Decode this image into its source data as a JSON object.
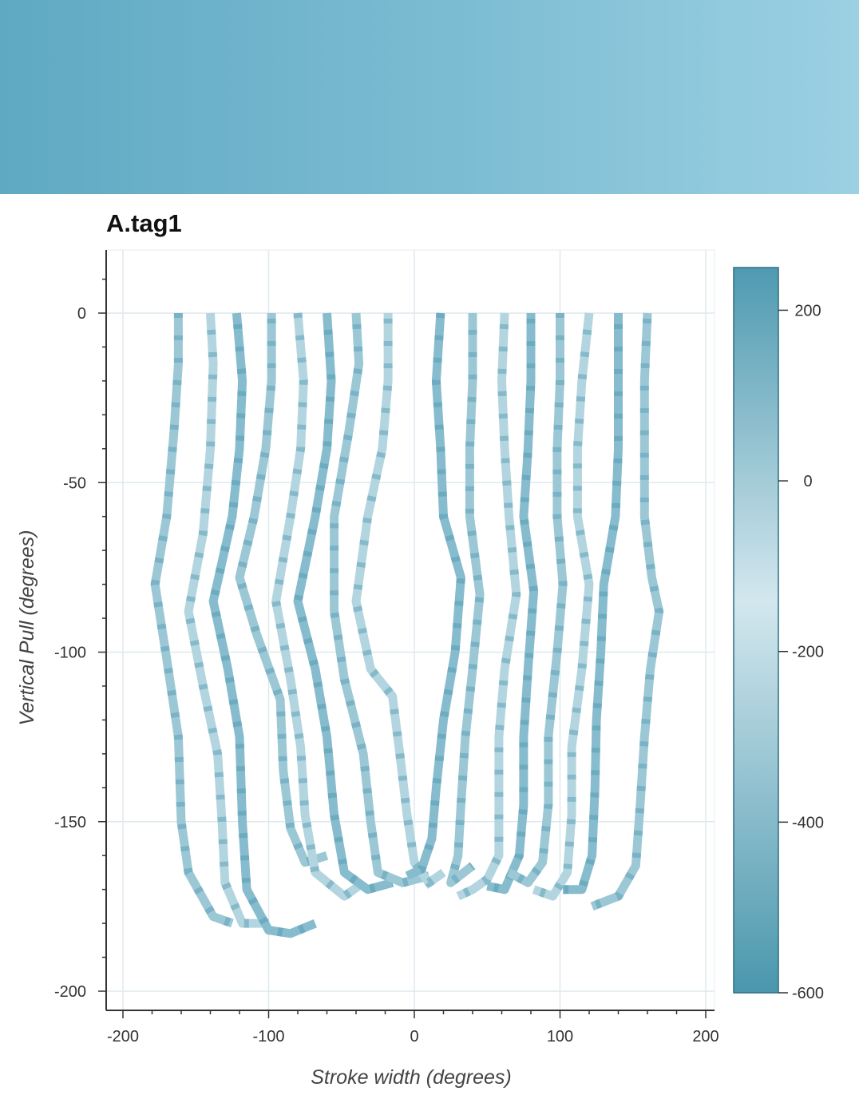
{
  "header": {
    "color_start": "#5fa9c2",
    "color_end": "#9cd0e3"
  },
  "chart_data": {
    "type": "line",
    "title": "A.tag1",
    "xlabel": "Stroke width (degrees)",
    "ylabel": "Vertical Pull (degrees)",
    "xlim": [
      -200,
      200
    ],
    "ylim": [
      -200,
      0
    ],
    "x_ticks": [
      -200,
      -100,
      0,
      100,
      200
    ],
    "y_ticks": [
      0,
      -50,
      -100,
      -150,
      -200
    ],
    "grid": true,
    "colorbar": {
      "ticks": [
        200,
        0,
        -200,
        -400,
        -600
      ],
      "range": [
        -600,
        250
      ],
      "colors": [
        "#4f9ab1",
        "#d3e7ee",
        "#4a97ad"
      ]
    },
    "series": [
      {
        "points": [
          [
            -162,
            0
          ],
          [
            -162,
            -15
          ],
          [
            -165,
            -35
          ],
          [
            -170,
            -60
          ],
          [
            -178,
            -80
          ],
          [
            -170,
            -102
          ],
          [
            -162,
            -125
          ],
          [
            -160,
            -150
          ],
          [
            -155,
            -165
          ],
          [
            -138,
            -178
          ],
          [
            -125,
            -180
          ]
        ]
      },
      {
        "points": [
          [
            -140,
            0
          ],
          [
            -138,
            -15
          ],
          [
            -140,
            -40
          ],
          [
            -145,
            -65
          ],
          [
            -155,
            -88
          ],
          [
            -145,
            -110
          ],
          [
            -135,
            -130
          ],
          [
            -132,
            -150
          ],
          [
            -130,
            -168
          ],
          [
            -118,
            -180
          ],
          [
            -100,
            -180
          ]
        ]
      },
      {
        "points": [
          [
            -122,
            0
          ],
          [
            -118,
            -20
          ],
          [
            -120,
            -40
          ],
          [
            -125,
            -60
          ],
          [
            -138,
            -85
          ],
          [
            -128,
            -105
          ],
          [
            -120,
            -125
          ],
          [
            -118,
            -150
          ],
          [
            -115,
            -170
          ],
          [
            -100,
            -182
          ],
          [
            -85,
            -183
          ],
          [
            -68,
            -180
          ]
        ]
      },
      {
        "points": [
          [
            -98,
            0
          ],
          [
            -98,
            -20
          ],
          [
            -102,
            -40
          ],
          [
            -110,
            -60
          ],
          [
            -120,
            -78
          ],
          [
            -108,
            -95
          ],
          [
            -92,
            -114
          ],
          [
            -90,
            -135
          ],
          [
            -85,
            -152
          ],
          [
            -75,
            -162
          ],
          [
            -60,
            -160
          ]
        ]
      },
      {
        "points": [
          [
            -80,
            0
          ],
          [
            -76,
            -20
          ],
          [
            -78,
            -40
          ],
          [
            -85,
            -60
          ],
          [
            -95,
            -85
          ],
          [
            -85,
            -108
          ],
          [
            -78,
            -128
          ],
          [
            -75,
            -148
          ],
          [
            -68,
            -165
          ],
          [
            -48,
            -172
          ],
          [
            -35,
            -168
          ]
        ]
      },
      {
        "points": [
          [
            -60,
            0
          ],
          [
            -57,
            -20
          ],
          [
            -60,
            -40
          ],
          [
            -68,
            -60
          ],
          [
            -80,
            -85
          ],
          [
            -68,
            -105
          ],
          [
            -60,
            -125
          ],
          [
            -55,
            -148
          ],
          [
            -48,
            -165
          ],
          [
            -32,
            -170
          ],
          [
            -15,
            -168
          ]
        ]
      },
      {
        "points": [
          [
            -40,
            0
          ],
          [
            -38,
            -15
          ],
          [
            -45,
            -35
          ],
          [
            -55,
            -60
          ],
          [
            -55,
            -88
          ],
          [
            -48,
            -108
          ],
          [
            -35,
            -130
          ],
          [
            -30,
            -150
          ],
          [
            -25,
            -165
          ],
          [
            -8,
            -168
          ],
          [
            10,
            -166
          ]
        ]
      },
      {
        "points": [
          [
            -18,
            0
          ],
          [
            -18,
            -20
          ],
          [
            -22,
            -40
          ],
          [
            -32,
            -60
          ],
          [
            -40,
            -85
          ],
          [
            -30,
            -105
          ],
          [
            -15,
            -113
          ],
          [
            -10,
            -130
          ],
          [
            -5,
            -148
          ],
          [
            0,
            -162
          ],
          [
            10,
            -168
          ],
          [
            20,
            -165
          ]
        ]
      },
      {
        "points": [
          [
            18,
            0
          ],
          [
            15,
            -20
          ],
          [
            18,
            -40
          ],
          [
            20,
            -60
          ],
          [
            32,
            -78
          ],
          [
            28,
            -100
          ],
          [
            20,
            -120
          ],
          [
            15,
            -140
          ],
          [
            12,
            -155
          ],
          [
            5,
            -164
          ],
          [
            -5,
            -166
          ]
        ]
      },
      {
        "points": [
          [
            40,
            0
          ],
          [
            40,
            -20
          ],
          [
            38,
            -40
          ],
          [
            38,
            -60
          ],
          [
            45,
            -83
          ],
          [
            40,
            -105
          ],
          [
            35,
            -125
          ],
          [
            32,
            -145
          ],
          [
            30,
            -160
          ],
          [
            25,
            -168
          ],
          [
            40,
            -163
          ]
        ]
      },
      {
        "points": [
          [
            62,
            0
          ],
          [
            60,
            -20
          ],
          [
            62,
            -40
          ],
          [
            65,
            -60
          ],
          [
            70,
            -83
          ],
          [
            62,
            -105
          ],
          [
            58,
            -125
          ],
          [
            58,
            -145
          ],
          [
            58,
            -160
          ],
          [
            50,
            -167
          ],
          [
            40,
            -170
          ],
          [
            30,
            -172
          ]
        ]
      },
      {
        "points": [
          [
            80,
            0
          ],
          [
            80,
            -20
          ],
          [
            78,
            -40
          ],
          [
            75,
            -60
          ],
          [
            82,
            -82
          ],
          [
            78,
            -105
          ],
          [
            75,
            -125
          ],
          [
            75,
            -145
          ],
          [
            72,
            -160
          ],
          [
            62,
            -170
          ],
          [
            50,
            -169
          ]
        ]
      },
      {
        "points": [
          [
            100,
            0
          ],
          [
            100,
            -20
          ],
          [
            98,
            -40
          ],
          [
            98,
            -60
          ],
          [
            102,
            -80
          ],
          [
            98,
            -100
          ],
          [
            92,
            -125
          ],
          [
            92,
            -145
          ],
          [
            88,
            -162
          ],
          [
            78,
            -168
          ],
          [
            65,
            -165
          ]
        ]
      },
      {
        "points": [
          [
            120,
            0
          ],
          [
            115,
            -20
          ],
          [
            112,
            -40
          ],
          [
            112,
            -60
          ],
          [
            120,
            -80
          ],
          [
            115,
            -105
          ],
          [
            108,
            -128
          ],
          [
            108,
            -148
          ],
          [
            105,
            -165
          ],
          [
            95,
            -172
          ],
          [
            82,
            -170
          ]
        ]
      },
      {
        "points": [
          [
            140,
            0
          ],
          [
            140,
            -20
          ],
          [
            140,
            -40
          ],
          [
            138,
            -60
          ],
          [
            130,
            -80
          ],
          [
            128,
            -100
          ],
          [
            125,
            -120
          ],
          [
            124,
            -140
          ],
          [
            122,
            -160
          ],
          [
            115,
            -170
          ],
          [
            102,
            -170
          ]
        ]
      },
      {
        "points": [
          [
            160,
            0
          ],
          [
            158,
            -20
          ],
          [
            158,
            -40
          ],
          [
            158,
            -60
          ],
          [
            163,
            -78
          ],
          [
            168,
            -88
          ],
          [
            162,
            -105
          ],
          [
            158,
            -125
          ],
          [
            155,
            -145
          ],
          [
            152,
            -163
          ],
          [
            140,
            -172
          ],
          [
            122,
            -175
          ]
        ]
      }
    ]
  }
}
